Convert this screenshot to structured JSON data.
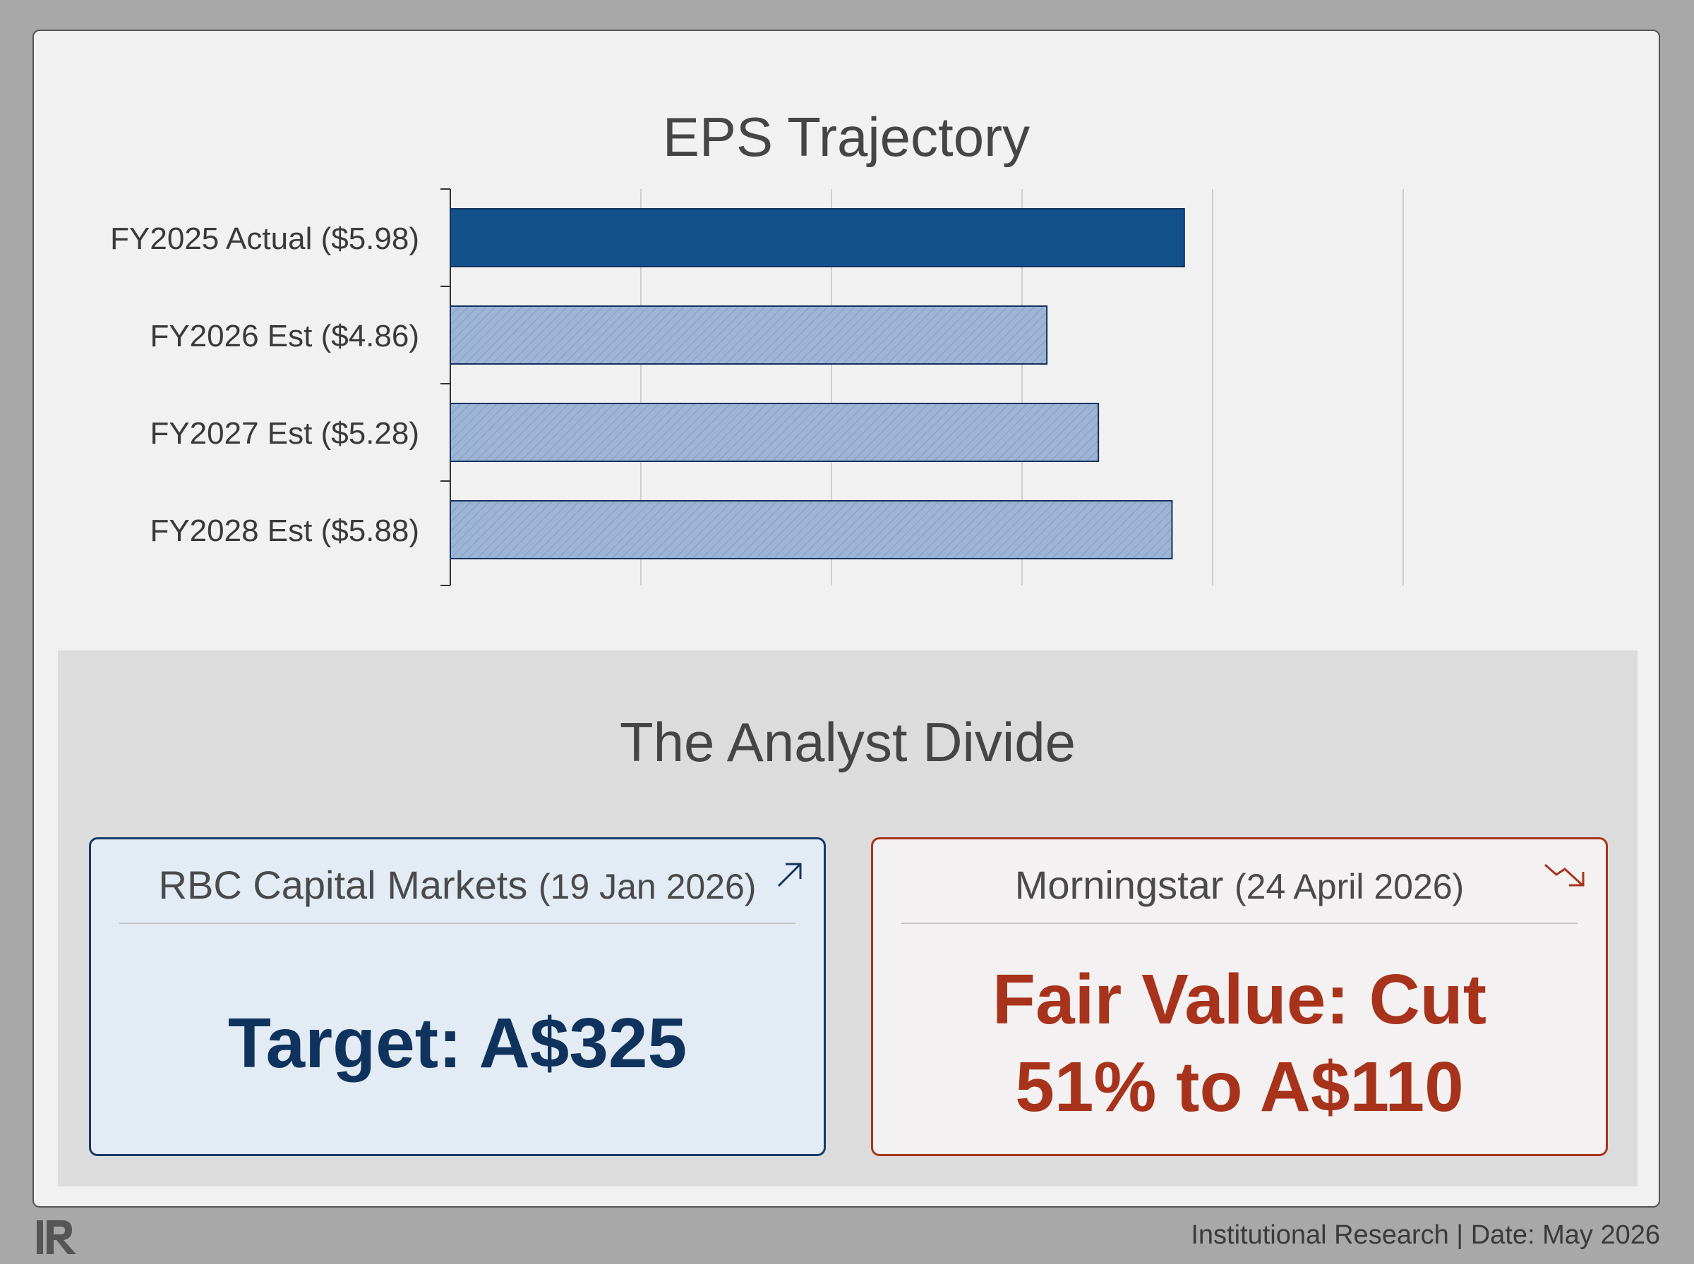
{
  "chart_data": {
    "type": "bar",
    "orientation": "horizontal",
    "title": "EPS Trajectory",
    "categories": [
      "FY2025 Actual ($5.98)",
      "FY2026 Est ($4.86)",
      "FY2027 Est ($5.28)",
      "FY2028 Est ($5.88)"
    ],
    "values": [
      5.98,
      4.86,
      5.28,
      5.88
    ],
    "bar_styles": [
      "actual",
      "estimate",
      "estimate",
      "estimate"
    ],
    "xlim": [
      0,
      7.2
    ],
    "grid": true,
    "colors": {
      "actual": "#12508a",
      "estimate": "#9db4d5",
      "edge": "#14325e"
    }
  },
  "divide": {
    "title": "The Analyst Divide",
    "rbc": {
      "firm": "RBC Capital Markets",
      "date": "(19 Jan 2026)",
      "value": "Target: A$325",
      "icon": "arrow-up-right-icon"
    },
    "morningstar": {
      "firm": "Morningstar",
      "date": "(24 April 2026)",
      "value_line1": "Fair Value: Cut",
      "value_line2": "51% to A$110",
      "icon": "trend-down-icon"
    }
  },
  "footer": {
    "text": "Institutional Research | Date: May 2026",
    "logo_icon": "ir-logo-icon"
  }
}
